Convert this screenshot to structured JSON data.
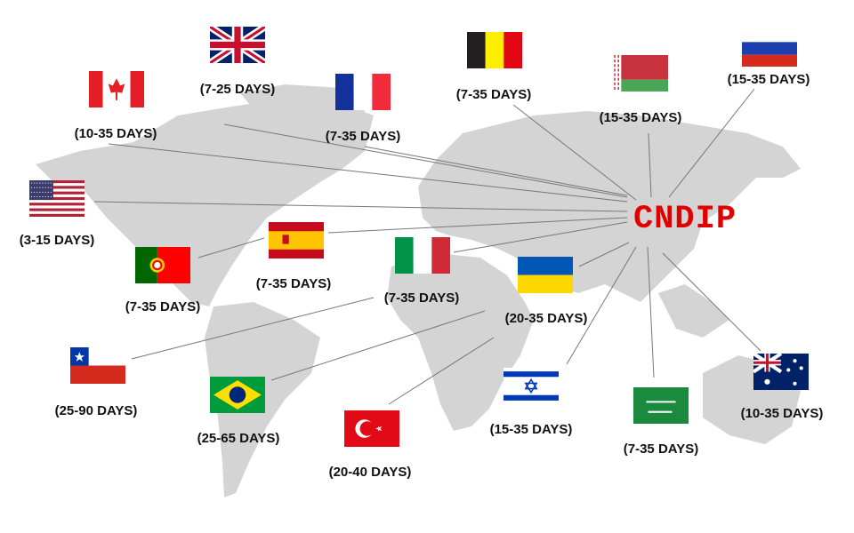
{
  "hub": {
    "label": "CNDIP",
    "color": "#e00000"
  },
  "map_color": "#d4d4d4",
  "line_color": "#777777",
  "destinations": [
    {
      "country": "United Kingdom",
      "flag_icon": "uk-flag-icon",
      "label": "(7-25 DAYS)"
    },
    {
      "country": "Canada",
      "flag_icon": "canada-flag-icon",
      "label": "(10-35 DAYS)"
    },
    {
      "country": "France",
      "flag_icon": "france-flag-icon",
      "label": "(7-35 DAYS)"
    },
    {
      "country": "Belgium",
      "flag_icon": "belgium-flag-icon",
      "label": "(7-35 DAYS)"
    },
    {
      "country": "Belarus",
      "flag_icon": "belarus-flag-icon",
      "label": "(15-35 DAYS)"
    },
    {
      "country": "Russia",
      "flag_icon": "russia-flag-icon",
      "label": "(15-35 DAYS)"
    },
    {
      "country": "United States",
      "flag_icon": "usa-flag-icon",
      "label": "(3-15 DAYS)"
    },
    {
      "country": "Spain",
      "flag_icon": "spain-flag-icon",
      "label": "(7-35 DAYS)"
    },
    {
      "country": "Portugal",
      "flag_icon": "portugal-flag-icon",
      "label": "(7-35 DAYS)"
    },
    {
      "country": "Italy",
      "flag_icon": "italy-flag-icon",
      "label": "(7-35 DAYS)"
    },
    {
      "country": "Ukraine",
      "flag_icon": "ukraine-flag-icon",
      "label": "(20-35 DAYS)"
    },
    {
      "country": "Chile",
      "flag_icon": "chile-flag-icon",
      "label": "(25-90 DAYS)"
    },
    {
      "country": "Brazil",
      "flag_icon": "brazil-flag-icon",
      "label": "(25-65 DAYS)"
    },
    {
      "country": "Turkey",
      "flag_icon": "turkey-flag-icon",
      "label": "(20-40 DAYS)"
    },
    {
      "country": "Israel",
      "flag_icon": "israel-flag-icon",
      "label": "(15-35 DAYS)"
    },
    {
      "country": "Saudi Arabia",
      "flag_icon": "saudi-flag-icon",
      "label": "(7-35 DAYS)"
    },
    {
      "country": "Australia",
      "flag_icon": "australia-flag-icon",
      "label": "(10-35 DAYS)"
    }
  ]
}
